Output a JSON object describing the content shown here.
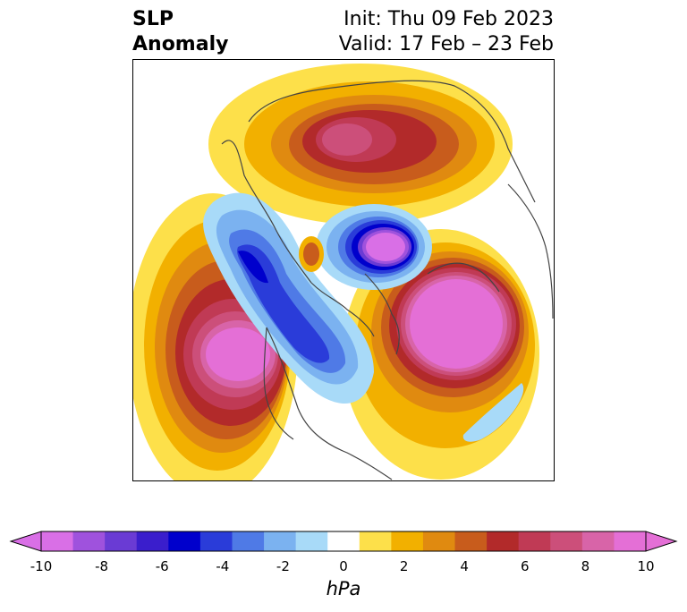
{
  "title": {
    "left_line1": "SLP",
    "left_line2": "Anomaly",
    "right_line1": "Init: Thu 09 Feb 2023",
    "right_line2": "Valid: 17 Feb – 23 Feb"
  },
  "map": {
    "projection": "polar-stereographic",
    "features": [
      {
        "name": "positive-anomaly-eurasia",
        "sign": "positive",
        "region": "Siberia / northern Eurasia"
      },
      {
        "name": "positive-anomaly-north-pacific",
        "sign": "positive",
        "region": "North Pacific / Gulf of Alaska"
      },
      {
        "name": "positive-anomaly-north-atlantic",
        "sign": "positive",
        "region": "North Atlantic / Greenland-Iceland"
      },
      {
        "name": "negative-anomaly-barents",
        "sign": "negative",
        "region": "Barents / Kara Sea"
      },
      {
        "name": "negative-anomaly-canada",
        "sign": "negative",
        "region": "western North America / Canadian Arctic"
      },
      {
        "name": "negative-anomaly-midatlantic",
        "sign": "negative",
        "region": "central Atlantic"
      }
    ]
  },
  "colorbar": {
    "units": "hPa",
    "ticks": [
      "-10",
      "-8",
      "-6",
      "-4",
      "-2",
      "0",
      "2",
      "4",
      "6",
      "8",
      "10"
    ],
    "bounds": [
      -10,
      10
    ],
    "step": 1,
    "extend": "both",
    "colors": [
      "#d96fe6",
      "#9f52dd",
      "#6a3bd4",
      "#3a1ecc",
      "#0000cc",
      "#2a3cd9",
      "#4f7ae6",
      "#7bb2f0",
      "#a8daf8",
      "#ffffff",
      "#fde04a",
      "#f2b000",
      "#e08a10",
      "#c85c1c",
      "#b22a2a",
      "#c03a55",
      "#cc4f7a",
      "#d864a8",
      "#e46fd6"
    ]
  }
}
